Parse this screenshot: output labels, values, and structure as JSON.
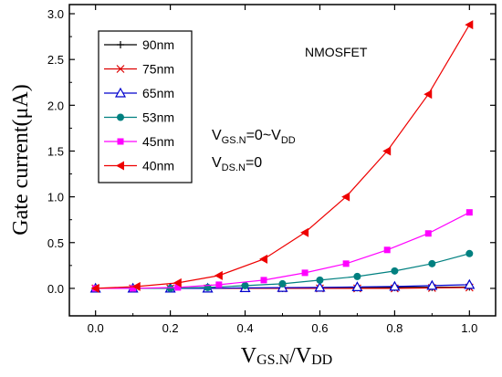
{
  "chart_data": {
    "type": "line",
    "title": "",
    "xlabel_main": "V",
    "xlabel_sub1": "GS.N",
    "xlabel_mid": "/V",
    "xlabel_sub2": "DD",
    "ylabel": "Gate current(μA)",
    "xlim": [
      -0.07,
      1.07
    ],
    "ylim": [
      -0.3,
      3.1
    ],
    "xticks": [
      0.0,
      0.2,
      0.4,
      0.6,
      0.8,
      1.0
    ],
    "xtick_labels": [
      "0.0",
      "0.2",
      "0.4",
      "0.6",
      "0.8",
      "1.0"
    ],
    "yticks": [
      0.0,
      0.5,
      1.0,
      1.5,
      2.0,
      2.5,
      3.0
    ],
    "ytick_labels": [
      "0.0",
      "0.5",
      "1.0",
      "1.5",
      "2.0",
      "2.5",
      "3.0"
    ],
    "annotation_title": "NMOSFET",
    "annotation_vgs": {
      "main": "V",
      "sub": "GS.N",
      "mid": "=0~V",
      "sub2": "DD"
    },
    "annotation_vds": {
      "main": "V",
      "sub": "DS.N",
      "tail": "=0"
    },
    "legend_position": "top-left",
    "series": [
      {
        "name": "90nm",
        "color": "#000000",
        "marker": "plus",
        "x": [
          0.0,
          0.1,
          0.2,
          0.3,
          0.4,
          0.5,
          0.6,
          0.7,
          0.8,
          0.9,
          1.0
        ],
        "y": [
          0.0,
          0.0,
          0.0,
          0.0,
          0.0,
          0.0,
          0.005,
          0.008,
          0.01,
          0.012,
          0.015
        ]
      },
      {
        "name": "75nm",
        "color": "#dd0000",
        "marker": "x",
        "x": [
          0.0,
          0.1,
          0.2,
          0.3,
          0.4,
          0.5,
          0.6,
          0.7,
          0.8,
          0.9,
          1.0
        ],
        "y": [
          0.0,
          0.0,
          0.0,
          0.0,
          0.0,
          0.0,
          0.0,
          0.0,
          0.0,
          0.005,
          0.01
        ]
      },
      {
        "name": "65nm",
        "color": "#0000cc",
        "marker": "triangle-up",
        "x": [
          0.0,
          0.1,
          0.2,
          0.3,
          0.4,
          0.5,
          0.6,
          0.7,
          0.8,
          0.9,
          1.0
        ],
        "y": [
          0.0,
          0.0,
          0.0,
          0.0,
          0.005,
          0.008,
          0.01,
          0.015,
          0.02,
          0.03,
          0.04
        ]
      },
      {
        "name": "53nm",
        "color": "#008080",
        "marker": "circle",
        "x": [
          0.0,
          0.1,
          0.2,
          0.3,
          0.4,
          0.5,
          0.6,
          0.7,
          0.8,
          0.9,
          1.0
        ],
        "y": [
          0.0,
          0.0,
          0.0,
          0.01,
          0.03,
          0.05,
          0.09,
          0.13,
          0.19,
          0.27,
          0.38
        ]
      },
      {
        "name": "45nm",
        "color": "#ff00ff",
        "marker": "square",
        "x": [
          0.0,
          0.1,
          0.22,
          0.33,
          0.45,
          0.56,
          0.67,
          0.78,
          0.89,
          1.0
        ],
        "y": [
          0.0,
          0.0,
          0.01,
          0.04,
          0.09,
          0.17,
          0.27,
          0.42,
          0.6,
          0.83
        ]
      },
      {
        "name": "40nm",
        "color": "#ee0000",
        "marker": "triangle-left",
        "x": [
          0.0,
          0.11,
          0.22,
          0.33,
          0.45,
          0.56,
          0.67,
          0.78,
          0.89,
          1.0
        ],
        "y": [
          0.0,
          0.02,
          0.06,
          0.14,
          0.32,
          0.61,
          1.0,
          1.5,
          2.12,
          2.88
        ]
      }
    ]
  }
}
